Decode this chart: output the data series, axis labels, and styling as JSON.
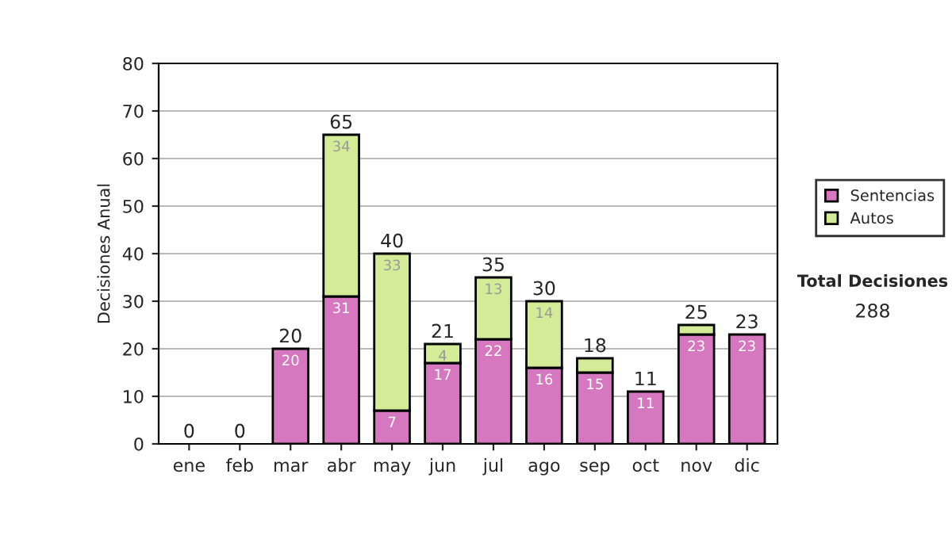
{
  "chart_data": {
    "type": "bar",
    "stacked": true,
    "ylabel": "Decisiones Anual",
    "categories": [
      "ene",
      "feb",
      "mar",
      "abr",
      "may",
      "jun",
      "jul",
      "ago",
      "sep",
      "oct",
      "nov",
      "dic"
    ],
    "series": [
      {
        "name": "Sentencias",
        "color": "#d678bf",
        "values": [
          0,
          0,
          20,
          31,
          7,
          17,
          22,
          16,
          15,
          11,
          23,
          23
        ],
        "value_labels": [
          null,
          null,
          "20",
          "31",
          "7",
          "17",
          "22",
          "16",
          "15",
          "11",
          "23",
          "23"
        ]
      },
      {
        "name": "Autos",
        "color": "#d4eb98",
        "values": [
          0,
          0,
          0,
          34,
          33,
          4,
          13,
          14,
          3,
          0,
          2,
          0
        ],
        "value_labels": [
          null,
          null,
          null,
          "34",
          "33",
          "4",
          "13",
          "14",
          null,
          null,
          null,
          null
        ]
      }
    ],
    "totals": [
      "0",
      "0",
      "20",
      "65",
      "40",
      "21",
      "35",
      "30",
      "18",
      "11",
      "25",
      "23"
    ],
    "ylim": [
      0,
      80
    ],
    "yticks": [
      0,
      10,
      20,
      30,
      40,
      50,
      60,
      70,
      80
    ],
    "grid": "y",
    "legend": "right",
    "annotations": [
      "Total Decisiones",
      "288"
    ]
  }
}
